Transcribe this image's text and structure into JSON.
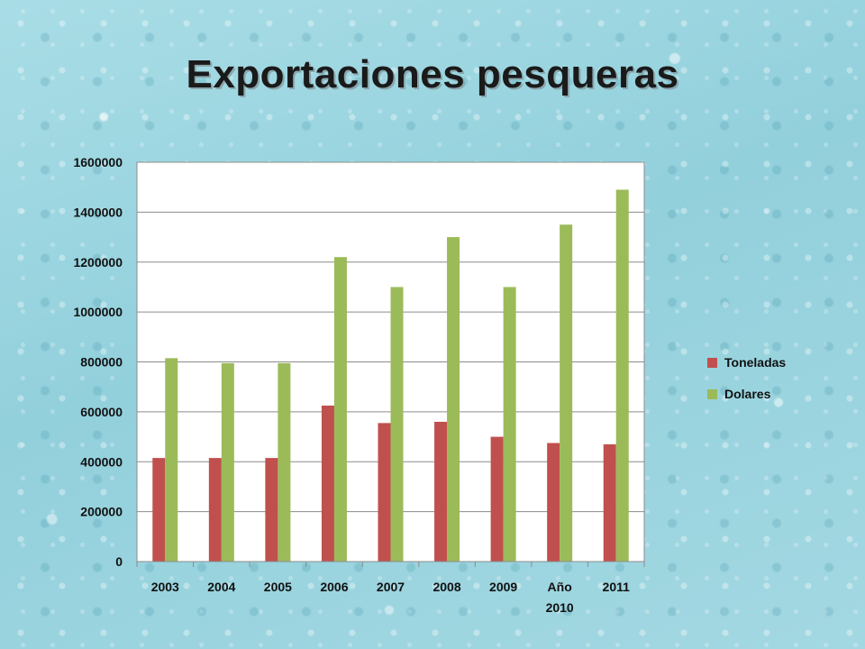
{
  "slide": {
    "title": "Exportaciones pesqueras"
  },
  "chart_data": {
    "type": "bar",
    "categories": [
      "2003",
      "2004",
      "2005",
      "2006",
      "2007",
      "2008",
      "2009",
      "Año 2010",
      "2011"
    ],
    "category_lines": [
      [
        "2003"
      ],
      [
        "2004"
      ],
      [
        "2005"
      ],
      [
        "2006"
      ],
      [
        "2007"
      ],
      [
        "2008"
      ],
      [
        "2009"
      ],
      [
        "Año",
        "2010"
      ],
      [
        "2011"
      ]
    ],
    "series": [
      {
        "name": "Toneladas",
        "color": "#c0504d",
        "values": [
          415000,
          415000,
          415000,
          625000,
          555000,
          560000,
          500000,
          475000,
          470000
        ]
      },
      {
        "name": "Dolares",
        "color": "#9bbb59",
        "values": [
          815000,
          795000,
          795000,
          1220000,
          1100000,
          1300000,
          1100000,
          1350000,
          1490000
        ]
      }
    ],
    "ylim": [
      0,
      1600000
    ],
    "yticks": [
      "0",
      "200000",
      "400000",
      "600000",
      "800000",
      "1000000",
      "1200000",
      "1400000",
      "1600000"
    ],
    "grid": true,
    "legend": "right"
  }
}
